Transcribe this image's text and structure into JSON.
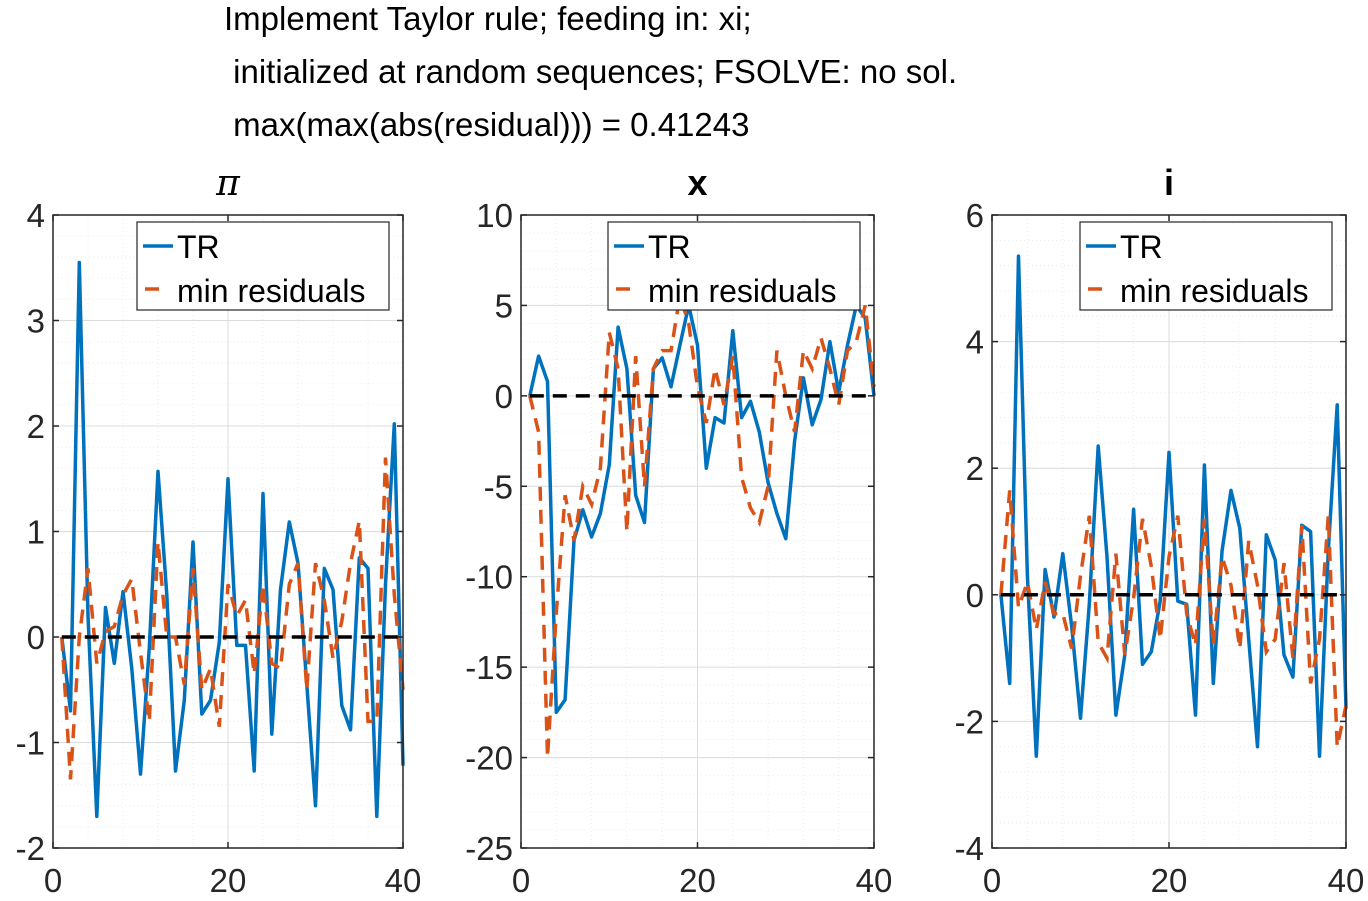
{
  "figure": {
    "title_lines": [
      "Implement Taylor rule; feeding in: xi;",
      " initialized at random sequences; FSOLVE: no sol.",
      " max(max(abs(residual))) = 0.41243"
    ]
  },
  "colors": {
    "tr": "#0072BD",
    "min_residuals": "#D95319",
    "zero_line": "#000000",
    "grid_major": "#dcdcdc",
    "grid_minor": "#ececec"
  },
  "chart_data": [
    {
      "type": "line",
      "title": "π",
      "title_style": "italic",
      "xlim": [
        0,
        40
      ],
      "ylim": [
        -2,
        4
      ],
      "xticks": [
        0,
        20,
        40
      ],
      "yticks": [
        -2,
        -1,
        0,
        1,
        2,
        3,
        4
      ],
      "grid": true,
      "minor_grid": true,
      "legend": {
        "placement": "top-right",
        "entries": [
          "TR",
          "min residuals"
        ]
      },
      "series": [
        {
          "name": "TR",
          "style": "solid",
          "x": [
            1,
            2,
            3,
            4,
            5,
            6,
            7,
            8,
            9,
            10,
            11,
            12,
            13,
            14,
            15,
            16,
            17,
            18,
            19,
            20,
            21,
            22,
            23,
            24,
            25,
            26,
            27,
            28,
            29,
            30,
            31,
            32,
            33,
            34,
            35,
            36,
            37,
            38,
            39,
            40
          ],
          "y": [
            0,
            -0.7,
            3.55,
            0.2,
            -1.7,
            0.28,
            -0.25,
            0.43,
            -0.3,
            -1.3,
            -0.1,
            1.57,
            0.4,
            -1.27,
            -0.6,
            0.9,
            -0.73,
            -0.6,
            -0.05,
            1.5,
            -0.08,
            -0.08,
            -1.27,
            1.36,
            -0.92,
            0.45,
            1.09,
            0.7,
            -0.45,
            -1.6,
            0.65,
            0.45,
            -0.65,
            -0.88,
            0.75,
            0.65,
            -1.7,
            0.5,
            2.02,
            -1.22
          ]
        },
        {
          "name": "min residuals",
          "style": "dashed",
          "x": [
            1,
            2,
            3,
            4,
            5,
            6,
            7,
            8,
            9,
            10,
            11,
            12,
            13,
            14,
            15,
            16,
            17,
            18,
            19,
            20,
            21,
            22,
            23,
            24,
            25,
            26,
            27,
            28,
            29,
            30,
            31,
            32,
            33,
            34,
            35,
            36,
            37,
            38,
            39,
            40
          ],
          "y": [
            0,
            -1.35,
            0,
            0.65,
            -0.25,
            0.05,
            0.1,
            0.4,
            0.55,
            -0.15,
            -0.8,
            0.9,
            0,
            0,
            -0.45,
            0.65,
            -0.5,
            -0.3,
            -0.85,
            0.5,
            0.2,
            0.35,
            -0.35,
            0.5,
            -0.25,
            -0.3,
            0.5,
            0.7,
            -0.5,
            0.7,
            0.35,
            -0.2,
            0.15,
            0.7,
            1.1,
            -0.8,
            -0.8,
            1.7,
            0.4,
            -0.5
          ]
        },
        {
          "name": "",
          "style": "zero-dashed",
          "x": [
            1,
            40
          ],
          "y": [
            0,
            0
          ]
        }
      ]
    },
    {
      "type": "line",
      "title": "x",
      "title_style": "bold",
      "xlim": [
        0,
        40
      ],
      "ylim": [
        -25,
        10
      ],
      "xticks": [
        0,
        20,
        40
      ],
      "yticks": [
        -25,
        -20,
        -15,
        -10,
        -5,
        0,
        5,
        10
      ],
      "grid": true,
      "minor_grid": true,
      "legend": {
        "placement": "top-right",
        "entries": [
          "TR",
          "min residuals"
        ]
      },
      "series": [
        {
          "name": "TR",
          "style": "solid",
          "x": [
            1,
            2,
            3,
            4,
            5,
            6,
            7,
            8,
            9,
            10,
            11,
            12,
            13,
            14,
            15,
            16,
            17,
            18,
            19,
            20,
            21,
            22,
            23,
            24,
            25,
            26,
            27,
            28,
            29,
            30,
            31,
            32,
            33,
            34,
            35,
            36,
            37,
            38,
            39,
            40
          ],
          "y": [
            0,
            2.2,
            0.8,
            -17.5,
            -16.8,
            -8,
            -6.3,
            -7.8,
            -6.5,
            -3.8,
            3.8,
            1.5,
            -5.5,
            -7,
            1.5,
            2.1,
            0.5,
            2.8,
            5,
            2.8,
            -4,
            -1.2,
            -1.5,
            3.6,
            -1.2,
            -0.3,
            -2,
            -4.8,
            -6.5,
            -7.9,
            -2.5,
            1,
            -1.6,
            -0.2,
            3,
            0.2,
            2.8,
            5,
            4.3,
            0
          ]
        },
        {
          "name": "min residuals",
          "style": "dashed",
          "x": [
            1,
            2,
            3,
            4,
            5,
            6,
            7,
            8,
            9,
            10,
            11,
            12,
            13,
            14,
            15,
            16,
            17,
            18,
            19,
            20,
            21,
            22,
            23,
            24,
            25,
            26,
            27,
            28,
            29,
            30,
            31,
            32,
            33,
            34,
            35,
            36,
            37,
            38,
            39,
            40
          ],
          "y": [
            0,
            -2,
            -20,
            -12,
            -5.5,
            -8,
            -5,
            -6,
            -4,
            3.5,
            1.5,
            -7.5,
            2.2,
            -5,
            1.5,
            2.5,
            2.5,
            5.5,
            4,
            0.5,
            -1.5,
            1.5,
            -0.5,
            2.2,
            -4.5,
            -6.2,
            -7,
            -5,
            2.5,
            0,
            -2,
            2.5,
            1.5,
            3.2,
            1.5,
            -0.5,
            2.5,
            3,
            5,
            0.5
          ]
        },
        {
          "name": "",
          "style": "zero-dashed",
          "x": [
            1,
            40
          ],
          "y": [
            0,
            0
          ]
        }
      ]
    },
    {
      "type": "line",
      "title": "i",
      "title_style": "bold",
      "xlim": [
        0,
        40
      ],
      "ylim": [
        -4,
        6
      ],
      "xticks": [
        0,
        20,
        40
      ],
      "yticks": [
        -4,
        -2,
        0,
        2,
        4,
        6
      ],
      "grid": true,
      "minor_grid": true,
      "legend": {
        "placement": "top-right",
        "entries": [
          "TR",
          "min residuals"
        ]
      },
      "series": [
        {
          "name": "TR",
          "style": "solid",
          "x": [
            1,
            2,
            3,
            4,
            5,
            6,
            7,
            8,
            9,
            10,
            11,
            12,
            13,
            14,
            15,
            16,
            17,
            18,
            19,
            20,
            21,
            22,
            23,
            24,
            25,
            26,
            27,
            28,
            29,
            30,
            31,
            32,
            33,
            34,
            35,
            36,
            37,
            38,
            39,
            40
          ],
          "y": [
            0,
            -1.4,
            5.35,
            0.3,
            -2.55,
            0.4,
            -0.35,
            0.65,
            -0.5,
            -1.95,
            -0.15,
            2.35,
            0.6,
            -1.9,
            -0.95,
            1.35,
            -1.1,
            -0.9,
            -0.1,
            2.25,
            -0.1,
            -0.15,
            -1.9,
            2.05,
            -1.4,
            0.7,
            1.65,
            1.05,
            -0.7,
            -2.4,
            0.95,
            0.55,
            -0.95,
            -1.3,
            1.1,
            1.0,
            -2.55,
            0.7,
            3.0,
            -1.8
          ]
        },
        {
          "name": "min residuals",
          "style": "dashed",
          "x": [
            1,
            2,
            3,
            4,
            5,
            6,
            7,
            8,
            9,
            10,
            11,
            12,
            13,
            14,
            15,
            16,
            17,
            18,
            19,
            20,
            21,
            22,
            23,
            24,
            25,
            26,
            27,
            28,
            29,
            30,
            31,
            32,
            33,
            34,
            35,
            36,
            37,
            38,
            39,
            40
          ],
          "y": [
            0,
            1.65,
            -0.2,
            0.2,
            -0.55,
            0.2,
            -0.3,
            -0.3,
            -0.85,
            0.3,
            1.25,
            -0.75,
            -1.0,
            0.65,
            -0.95,
            -0.05,
            1.2,
            0.45,
            -0.7,
            0.6,
            1.25,
            -0.3,
            -0.8,
            1.2,
            -0.8,
            0.6,
            0.15,
            -0.85,
            0.85,
            0.15,
            -0.9,
            -0.7,
            0.5,
            -1.0,
            1.1,
            -1.4,
            -0.7,
            1.25,
            -2.4,
            -1.75
          ]
        },
        {
          "name": "",
          "style": "zero-dashed",
          "x": [
            1,
            40
          ],
          "y": [
            0,
            0
          ]
        }
      ]
    }
  ]
}
